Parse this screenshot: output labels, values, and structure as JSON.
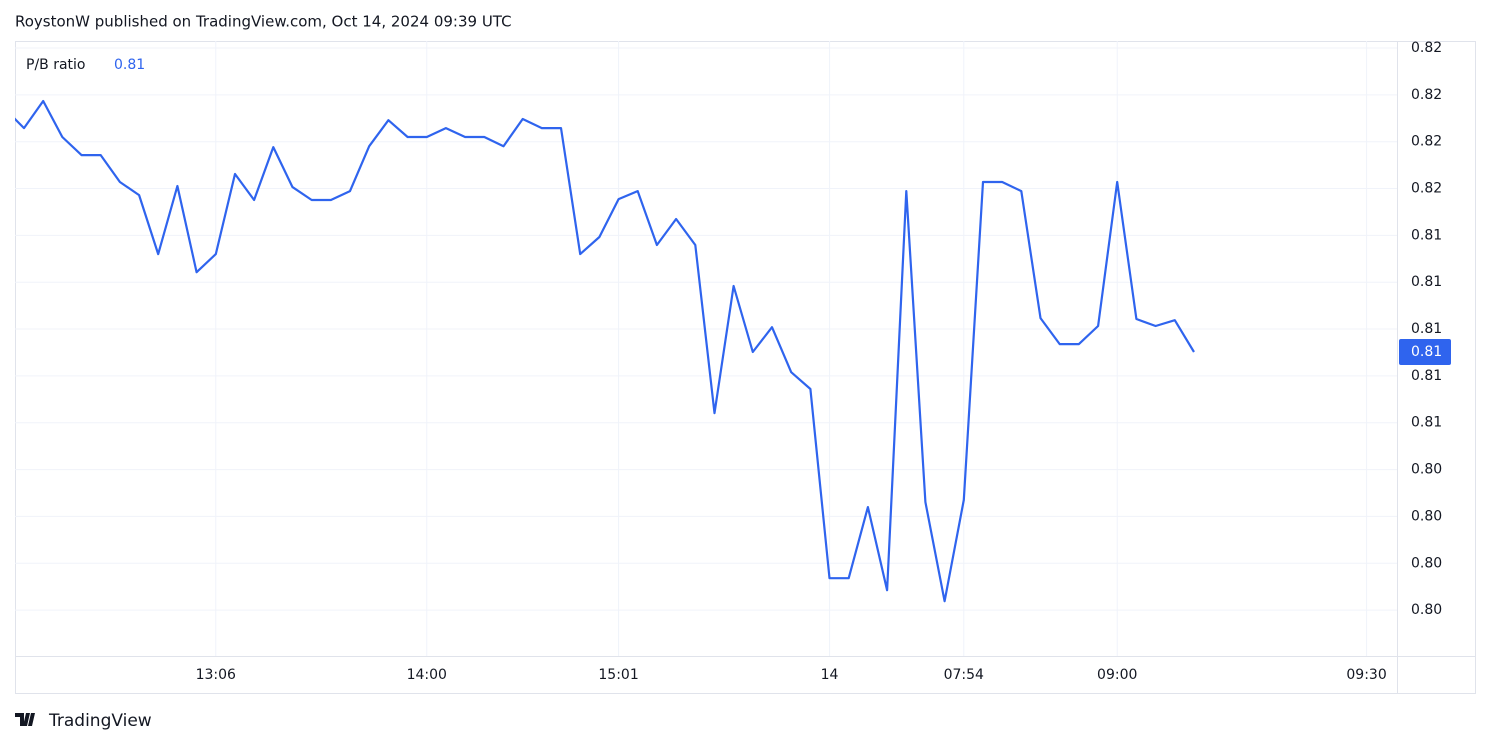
{
  "header": "RoystonW published on TradingView.com, Oct 14, 2024 09:39 UTC",
  "footer": "TradingView",
  "chart_data": {
    "type": "line",
    "categories": [
      null,
      null,
      null,
      null,
      null,
      null,
      null,
      null,
      null,
      null,
      null,
      "13:06",
      null,
      null,
      null,
      null,
      null,
      null,
      null,
      null,
      null,
      null,
      "14:00",
      null,
      null,
      null,
      null,
      null,
      null,
      null,
      null,
      null,
      "15:01",
      null,
      null,
      null,
      null,
      null,
      null,
      null,
      null,
      null,
      null,
      "14",
      null,
      null,
      null,
      null,
      null,
      null,
      "07:54",
      null,
      null,
      null,
      null,
      null,
      null,
      null,
      "09:00",
      null,
      null,
      null,
      null,
      null,
      null,
      null,
      null,
      null,
      null,
      null,
      null,
      "09:30"
    ],
    "series": [
      {
        "name": "P/B ratio",
        "color": "#2f64ee",
        "values": [
          0.8194,
          0.81858,
          0.81974,
          0.8182,
          0.81743,
          0.81743,
          0.81628,
          0.81572,
          0.8132,
          0.81611,
          0.81243,
          0.8132,
          0.81662,
          0.81551,
          0.81777,
          0.81606,
          0.81551,
          0.81551,
          0.81589,
          0.81781,
          0.81892,
          0.8182,
          0.8182,
          0.81858,
          0.8182,
          0.8182,
          0.81781,
          0.81897,
          0.81858,
          0.81858,
          0.8132,
          0.81393,
          0.81555,
          0.81589,
          0.81359,
          0.8147,
          0.81359,
          0.80641,
          0.81184,
          0.80902,
          0.81008,
          0.80816,
          0.80744,
          0.79936,
          0.79936,
          0.8024,
          0.79885,
          0.81589,
          0.80261,
          0.79838,
          0.8027,
          0.81628,
          0.81628,
          0.81589,
          0.81047,
          0.80936,
          0.80936,
          0.81013,
          0.81628,
          0.81043,
          0.81013,
          0.81038,
          0.80902,
          null,
          null,
          null,
          null,
          null,
          null,
          null,
          null,
          null
        ]
      }
    ],
    "current": {
      "value": 0.80902,
      "label": "0.81"
    },
    "ylim": [
      0.79604,
      0.8223
    ],
    "yticks": [
      {
        "value": 0.822,
        "label": "0.82"
      },
      {
        "value": 0.82,
        "label": "0.82"
      },
      {
        "value": 0.818,
        "label": "0.82"
      },
      {
        "value": 0.816,
        "label": "0.82"
      },
      {
        "value": 0.814,
        "label": "0.81"
      },
      {
        "value": 0.812,
        "label": "0.81"
      },
      {
        "value": 0.81,
        "label": "0.81"
      },
      {
        "value": 0.808,
        "label": "0.81"
      },
      {
        "value": 0.806,
        "label": "0.81"
      },
      {
        "value": 0.804,
        "label": "0.80"
      },
      {
        "value": 0.802,
        "label": "0.80"
      },
      {
        "value": 0.8,
        "label": "0.80"
      },
      {
        "value": 0.798,
        "label": "0.80"
      }
    ],
    "grid": true
  }
}
